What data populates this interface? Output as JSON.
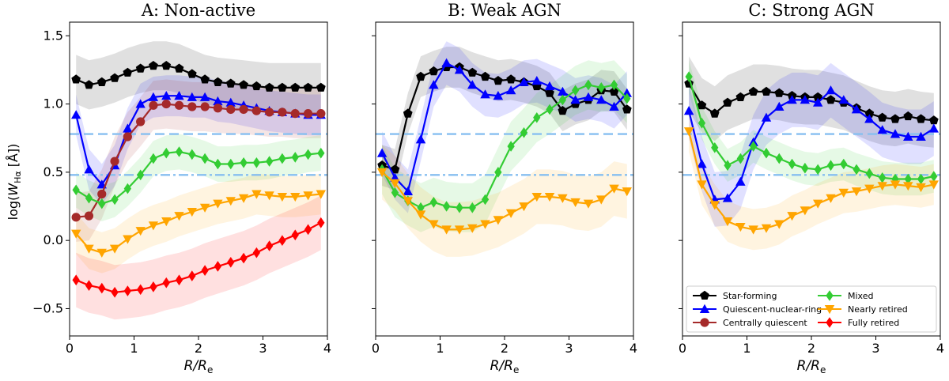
{
  "chart_data": {
    "type": "line",
    "ylabel": "log(W_Hα [Å])",
    "xlabel": "R/R_e",
    "xlim": [
      0,
      4
    ],
    "ylim": [
      -0.7,
      1.6
    ],
    "xticks": [
      "0",
      "1",
      "2",
      "3",
      "4"
    ],
    "yticks": [
      "−0.5",
      "0.0",
      "0.5",
      "1.0",
      "1.5"
    ],
    "hlines": {
      "dashed": 0.78,
      "dashdot": 0.48,
      "color": "#87bff0"
    },
    "colors": {
      "Star-forming": "#000000",
      "Quiescent-nuclear-ring": "#0000ff",
      "Centrally quiescent": "#a52a2a",
      "Mixed": "#33cc33",
      "Nearly retired": "#ffa500",
      "Fully retired": "#ff0000"
    },
    "legend": [
      {
        "name": "Star-forming",
        "marker": "pentagon"
      },
      {
        "name": "Mixed",
        "marker": "diamond"
      },
      {
        "name": "Quiescent-nuclear-ring",
        "marker": "triangle"
      },
      {
        "name": "Nearly retired",
        "marker": "tri-down"
      },
      {
        "name": "Centrally quiescent",
        "marker": "circle"
      },
      {
        "name": "Fully retired",
        "marker": "diamond"
      }
    ],
    "x": [
      0.1,
      0.3,
      0.5,
      0.7,
      0.9,
      1.1,
      1.3,
      1.5,
      1.7,
      1.9,
      2.1,
      2.3,
      2.5,
      2.7,
      2.9,
      3.1,
      3.3,
      3.5,
      3.7,
      3.9
    ],
    "panels": [
      {
        "title": "A: Non-active",
        "series": [
          {
            "name": "Star-forming",
            "marker": "pentagon",
            "values": [
              1.18,
              1.14,
              1.16,
              1.19,
              1.23,
              1.26,
              1.28,
              1.28,
              1.26,
              1.22,
              1.18,
              1.16,
              1.15,
              1.14,
              1.13,
              1.12,
              1.12,
              1.12,
              1.12,
              1.12
            ],
            "band": 0.18
          },
          {
            "name": "Quiescent-nuclear-ring",
            "marker": "triangle",
            "values": [
              0.92,
              0.52,
              0.41,
              0.55,
              0.82,
              1.0,
              1.05,
              1.06,
              1.06,
              1.05,
              1.05,
              1.02,
              1.01,
              0.99,
              0.97,
              0.95,
              0.94,
              0.93,
              0.92,
              0.92
            ],
            "band": 0.15
          },
          {
            "name": "Centrally quiescent",
            "marker": "circle",
            "values": [
              0.17,
              0.18,
              0.34,
              0.58,
              0.76,
              0.87,
              0.99,
              1.0,
              0.99,
              0.98,
              0.98,
              0.97,
              0.96,
              0.96,
              0.95,
              0.94,
              0.94,
              0.93,
              0.93,
              0.93
            ],
            "band": 0.18
          },
          {
            "name": "Mixed",
            "marker": "diamond",
            "values": [
              0.37,
              0.31,
              0.27,
              0.3,
              0.38,
              0.48,
              0.6,
              0.64,
              0.65,
              0.63,
              0.6,
              0.56,
              0.56,
              0.57,
              0.57,
              0.58,
              0.6,
              0.61,
              0.63,
              0.64
            ],
            "band": 0.13
          },
          {
            "name": "Nearly retired",
            "marker": "tri-down",
            "values": [
              0.05,
              -0.06,
              -0.09,
              -0.06,
              0.01,
              0.07,
              0.11,
              0.14,
              0.18,
              0.21,
              0.24,
              0.27,
              0.29,
              0.31,
              0.34,
              0.33,
              0.32,
              0.32,
              0.33,
              0.34
            ],
            "band": 0.15
          },
          {
            "name": "Fully retired",
            "marker": "diamond",
            "values": [
              -0.29,
              -0.33,
              -0.35,
              -0.38,
              -0.37,
              -0.36,
              -0.34,
              -0.31,
              -0.29,
              -0.26,
              -0.22,
              -0.19,
              -0.16,
              -0.13,
              -0.09,
              -0.04,
              0.0,
              0.04,
              0.08,
              0.13
            ],
            "band": 0.2
          }
        ]
      },
      {
        "title": "B: Weak AGN",
        "series": [
          {
            "name": "Star-forming",
            "marker": "pentagon",
            "values": [
              0.55,
              0.52,
              0.93,
              1.2,
              1.24,
              1.27,
              1.27,
              1.23,
              1.2,
              1.17,
              1.18,
              1.16,
              1.13,
              1.08,
              0.95,
              1.0,
              1.03,
              1.1,
              1.09,
              0.96
            ],
            "band": 0.15
          },
          {
            "name": "Quiescent-nuclear-ring",
            "marker": "triangle",
            "values": [
              0.64,
              0.46,
              0.36,
              0.74,
              1.14,
              1.3,
              1.25,
              1.14,
              1.07,
              1.06,
              1.1,
              1.16,
              1.17,
              1.13,
              1.09,
              1.03,
              1.05,
              1.03,
              0.98,
              1.08
            ],
            "band": 0.16
          },
          {
            "name": "Mixed",
            "marker": "diamond",
            "values": [
              0.52,
              0.35,
              0.29,
              0.24,
              0.28,
              0.25,
              0.24,
              0.24,
              0.3,
              0.5,
              0.69,
              0.79,
              0.9,
              0.96,
              1.03,
              1.1,
              1.14,
              1.12,
              1.14,
              1.04
            ],
            "band": 0.18
          },
          {
            "name": "Nearly retired",
            "marker": "tri-down",
            "values": [
              0.5,
              0.42,
              0.29,
              0.19,
              0.12,
              0.08,
              0.08,
              0.09,
              0.12,
              0.15,
              0.2,
              0.25,
              0.32,
              0.32,
              0.31,
              0.28,
              0.27,
              0.3,
              0.38,
              0.36
            ],
            "band": 0.2
          }
        ]
      },
      {
        "title": "C: Strong AGN",
        "series": [
          {
            "name": "Star-forming",
            "marker": "pentagon",
            "values": [
              1.15,
              0.99,
              0.93,
              1.01,
              1.05,
              1.09,
              1.09,
              1.08,
              1.06,
              1.05,
              1.05,
              1.03,
              1.01,
              0.97,
              0.93,
              0.9,
              0.89,
              0.91,
              0.89,
              0.88
            ],
            "band": 0.2
          },
          {
            "name": "Quiescent-nuclear-ring",
            "marker": "triangle",
            "values": [
              0.95,
              0.56,
              0.3,
              0.31,
              0.43,
              0.72,
              0.9,
              0.98,
              1.03,
              1.03,
              1.01,
              1.1,
              1.03,
              0.96,
              0.89,
              0.81,
              0.78,
              0.76,
              0.76,
              0.82
            ],
            "band": 0.2
          },
          {
            "name": "Mixed",
            "marker": "diamond",
            "values": [
              1.2,
              0.86,
              0.68,
              0.55,
              0.6,
              0.69,
              0.64,
              0.6,
              0.56,
              0.53,
              0.52,
              0.55,
              0.56,
              0.52,
              0.49,
              0.46,
              0.45,
              0.45,
              0.45,
              0.47
            ],
            "band": 0.12
          },
          {
            "name": "Nearly retired",
            "marker": "tri-down",
            "values": [
              0.8,
              0.41,
              0.26,
              0.14,
              0.1,
              0.08,
              0.09,
              0.12,
              0.18,
              0.22,
              0.27,
              0.31,
              0.35,
              0.36,
              0.38,
              0.4,
              0.41,
              0.4,
              0.39,
              0.41
            ],
            "band": 0.15
          }
        ]
      }
    ]
  }
}
